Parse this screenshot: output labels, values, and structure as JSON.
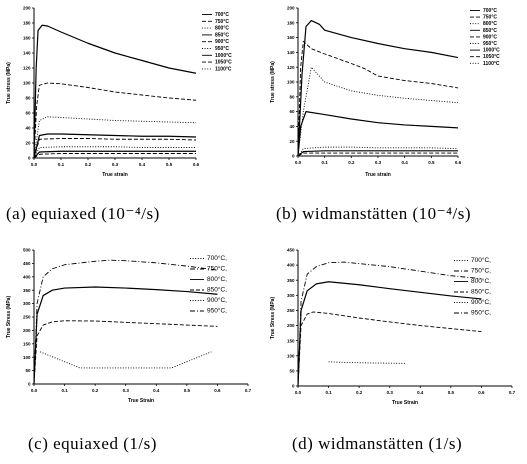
{
  "chart_data": [
    {
      "id": "a",
      "type": "line",
      "caption": "(a) equiaxed (10⁻⁴/s)",
      "xlabel": "True strain",
      "ylabel": "True stress (MPa)",
      "xlim": [
        0,
        0.6
      ],
      "ylim": [
        0,
        200
      ],
      "xticks": [
        "0.0",
        "0.1",
        "0.2",
        "0.3",
        "0.4",
        "0.5",
        "0.6"
      ],
      "yticks": [
        "0",
        "20",
        "40",
        "60",
        "80",
        "100",
        "120",
        "140",
        "160",
        "180",
        "200"
      ],
      "legend_position": "top-right",
      "legend_style": "small",
      "legend": [
        "700°C",
        "750°C",
        "800°C",
        "850°C",
        "900°C",
        "950°C",
        "1000°C",
        "1050°C",
        "1100°C"
      ],
      "series": [
        {
          "name": "700°C",
          "style": "solid",
          "x": [
            0,
            0.008,
            0.015,
            0.03,
            0.05,
            0.1,
            0.2,
            0.3,
            0.4,
            0.5,
            0.6
          ],
          "y": [
            0,
            120,
            170,
            177,
            176,
            168,
            153,
            140,
            130,
            120,
            113
          ]
        },
        {
          "name": "800°C",
          "style": "dash",
          "x": [
            0,
            0.01,
            0.02,
            0.05,
            0.1,
            0.2,
            0.3,
            0.4,
            0.5,
            0.6
          ],
          "y": [
            0,
            70,
            97,
            100,
            99,
            94,
            88,
            84,
            80,
            77
          ]
        },
        {
          "name": "850°C",
          "style": "dot",
          "x": [
            0,
            0.02,
            0.05,
            0.1,
            0.2,
            0.3,
            0.4,
            0.5,
            0.6
          ],
          "y": [
            0,
            50,
            55,
            54,
            52,
            50,
            49,
            48,
            47
          ]
        },
        {
          "name": "900°C",
          "style": "solid",
          "x": [
            0,
            0.02,
            0.05,
            0.1,
            0.2,
            0.3,
            0.4,
            0.5,
            0.6
          ],
          "y": [
            0,
            30,
            32,
            32,
            31,
            30,
            29,
            29,
            28
          ]
        },
        {
          "name": "950°C",
          "style": "dash",
          "x": [
            0,
            0.02,
            0.1,
            0.2,
            0.3,
            0.4,
            0.5,
            0.6
          ],
          "y": [
            0,
            25,
            26,
            26,
            25,
            25,
            25,
            24
          ]
        },
        {
          "name": "1000°C",
          "style": "dot",
          "x": [
            0,
            0.02,
            0.1,
            0.2,
            0.3,
            0.4,
            0.5,
            0.6
          ],
          "y": [
            0,
            14,
            15,
            15,
            15,
            14,
            14,
            14
          ]
        },
        {
          "name": "1050°C",
          "style": "solid",
          "x": [
            0,
            0.02,
            0.1,
            0.2,
            0.3,
            0.4,
            0.5,
            0.6
          ],
          "y": [
            0,
            8,
            9,
            9,
            9,
            9,
            9,
            9
          ]
        },
        {
          "name": "1100°C",
          "style": "dash",
          "x": [
            0,
            0.02,
            0.1,
            0.2,
            0.3,
            0.4,
            0.5,
            0.6
          ],
          "y": [
            0,
            5,
            6,
            6,
            6,
            6,
            6,
            6
          ]
        }
      ]
    },
    {
      "id": "b",
      "type": "line",
      "caption": "(b) widmanstätten (10⁻⁴/s)",
      "xlabel": "True strain",
      "ylabel": "True stress (MPa)",
      "xlim": [
        0,
        0.6
      ],
      "ylim": [
        0,
        200
      ],
      "xticks": [
        "0.0",
        "0.1",
        "0.2",
        "0.3",
        "0.4",
        "0.5",
        "0.6"
      ],
      "yticks": [
        "0",
        "20",
        "40",
        "60",
        "80",
        "100",
        "120",
        "140",
        "160",
        "180",
        "200"
      ],
      "legend_position": "top-right",
      "legend_style": "small",
      "legend": [
        "700°C",
        "750°C",
        "800°C",
        "850°C",
        "900°C",
        "950°C",
        "1000°C",
        "1050°C",
        "1100°C"
      ],
      "series": [
        {
          "name": "700°C",
          "style": "solid",
          "x": [
            0,
            0.015,
            0.03,
            0.05,
            0.08,
            0.1,
            0.2,
            0.3,
            0.4,
            0.5,
            0.6
          ],
          "y": [
            0,
            110,
            175,
            183,
            178,
            170,
            160,
            152,
            145,
            140,
            133
          ]
        },
        {
          "name": "750°C",
          "style": "dash",
          "x": [
            0,
            0.01,
            0.02,
            0.05,
            0.1,
            0.2,
            0.25,
            0.3,
            0.4,
            0.5,
            0.6
          ],
          "y": [
            0,
            120,
            155,
            145,
            138,
            125,
            118,
            108,
            102,
            98,
            92
          ]
        },
        {
          "name": "800°C",
          "style": "dot",
          "x": [
            0,
            0.02,
            0.05,
            0.1,
            0.2,
            0.3,
            0.4,
            0.5,
            0.6
          ],
          "y": [
            0,
            60,
            120,
            100,
            88,
            82,
            78,
            75,
            72
          ]
        },
        {
          "name": "850°C",
          "style": "solid",
          "x": [
            0,
            0.01,
            0.03,
            0.1,
            0.2,
            0.3,
            0.4,
            0.5,
            0.6
          ],
          "y": [
            0,
            40,
            60,
            56,
            50,
            45,
            42,
            40,
            38
          ]
        },
        {
          "name": "900°C",
          "style": "dot",
          "x": [
            0,
            0.02,
            0.1,
            0.2,
            0.3,
            0.4,
            0.5,
            0.6
          ],
          "y": [
            0,
            10,
            12,
            12,
            11,
            11,
            11,
            10
          ]
        },
        {
          "name": "950°C",
          "style": "solid",
          "x": [
            0,
            0.02,
            0.1,
            0.2,
            0.3,
            0.4,
            0.5,
            0.6
          ],
          "y": [
            0,
            6,
            7,
            7,
            7,
            7,
            7,
            7
          ]
        },
        {
          "name": "1000°C",
          "style": "dash",
          "x": [
            0,
            0.02,
            0.1,
            0.2,
            0.3,
            0.4,
            0.5,
            0.6
          ],
          "y": [
            0,
            4,
            4,
            4,
            4,
            4,
            4,
            4
          ]
        }
      ]
    },
    {
      "id": "c",
      "type": "line",
      "caption": "(c) equiaxed (1/s)",
      "xlabel": "True Strain",
      "ylabel": "True Stress (MPa)",
      "xlim": [
        0,
        0.7
      ],
      "ylim": [
        0,
        500
      ],
      "xticks": [
        "0.0",
        "0.1",
        "0.2",
        "0.3",
        "0.4",
        "0.5",
        "0.6",
        "0.7"
      ],
      "yticks": [
        "0",
        "50",
        "100",
        "150",
        "200",
        "250",
        "300",
        "350",
        "400",
        "450",
        "500"
      ],
      "legend_position": "top-right",
      "legend_style": "large",
      "legend": [
        "700°C,",
        "750°C,",
        "800°C,",
        "850°C,",
        "900°C,",
        "950°C,"
      ],
      "series": [
        {
          "name": "700°C,",
          "style": "dashdot",
          "x": [
            0,
            0.01,
            0.03,
            0.06,
            0.1,
            0.2,
            0.25,
            0.3,
            0.4,
            0.5,
            0.6
          ],
          "y": [
            0,
            300,
            400,
            430,
            445,
            458,
            462,
            460,
            452,
            440,
            425
          ]
        },
        {
          "name": "750°C,",
          "style": "solid",
          "x": [
            0,
            0.01,
            0.03,
            0.06,
            0.1,
            0.2,
            0.3,
            0.4,
            0.5,
            0.6
          ],
          "y": [
            0,
            260,
            330,
            350,
            358,
            362,
            358,
            352,
            345,
            335
          ]
        },
        {
          "name": "800°C,",
          "style": "dash",
          "x": [
            0,
            0.01,
            0.03,
            0.06,
            0.1,
            0.2,
            0.3,
            0.4,
            0.5,
            0.6
          ],
          "y": [
            0,
            180,
            220,
            232,
            236,
            235,
            230,
            225,
            220,
            215
          ]
        },
        {
          "name": "850°C,",
          "style": "dot",
          "x": [
            0.02,
            0.15,
            0.3,
            0.45,
            0.58
          ],
          "y": [
            120,
            60,
            60,
            60,
            120
          ]
        }
      ]
    },
    {
      "id": "d",
      "type": "line",
      "caption": "(d) widmanstätten (1/s)",
      "xlabel": "True Strain",
      "ylabel": "True Stress (MPa)",
      "xlim": [
        0,
        0.7
      ],
      "ylim": [
        0,
        450
      ],
      "xticks": [
        "0.0",
        "0.1",
        "0.2",
        "0.3",
        "0.4",
        "0.5",
        "0.6",
        "0.7"
      ],
      "yticks": [
        "0",
        "50",
        "100",
        "150",
        "200",
        "250",
        "300",
        "350",
        "400",
        "450"
      ],
      "legend_position": "top-right",
      "legend_style": "large",
      "legend": [
        "700°C,",
        "750°C,",
        "800°C,",
        "850°C,",
        "900°C,",
        "950°C,"
      ],
      "series": [
        {
          "name": "700°C,",
          "style": "dashdot",
          "x": [
            0,
            0.01,
            0.03,
            0.06,
            0.1,
            0.15,
            0.2,
            0.3,
            0.4,
            0.5,
            0.6
          ],
          "y": [
            0,
            280,
            370,
            395,
            408,
            410,
            405,
            395,
            380,
            365,
            355
          ]
        },
        {
          "name": "750°C,",
          "style": "solid",
          "x": [
            0,
            0.01,
            0.03,
            0.06,
            0.1,
            0.15,
            0.2,
            0.3,
            0.4,
            0.5,
            0.6
          ],
          "y": [
            0,
            250,
            315,
            338,
            345,
            340,
            335,
            322,
            310,
            298,
            288
          ]
        },
        {
          "name": "800°C,",
          "style": "dash",
          "x": [
            0,
            0.01,
            0.03,
            0.05,
            0.1,
            0.2,
            0.3,
            0.4,
            0.5,
            0.6
          ],
          "y": [
            0,
            200,
            238,
            245,
            240,
            225,
            212,
            200,
            190,
            180
          ]
        },
        {
          "name": "850°C,",
          "style": "dot",
          "x": [
            0.1,
            0.15,
            0.25,
            0.35
          ],
          "y": [
            80,
            78,
            76,
            75
          ]
        }
      ]
    }
  ]
}
